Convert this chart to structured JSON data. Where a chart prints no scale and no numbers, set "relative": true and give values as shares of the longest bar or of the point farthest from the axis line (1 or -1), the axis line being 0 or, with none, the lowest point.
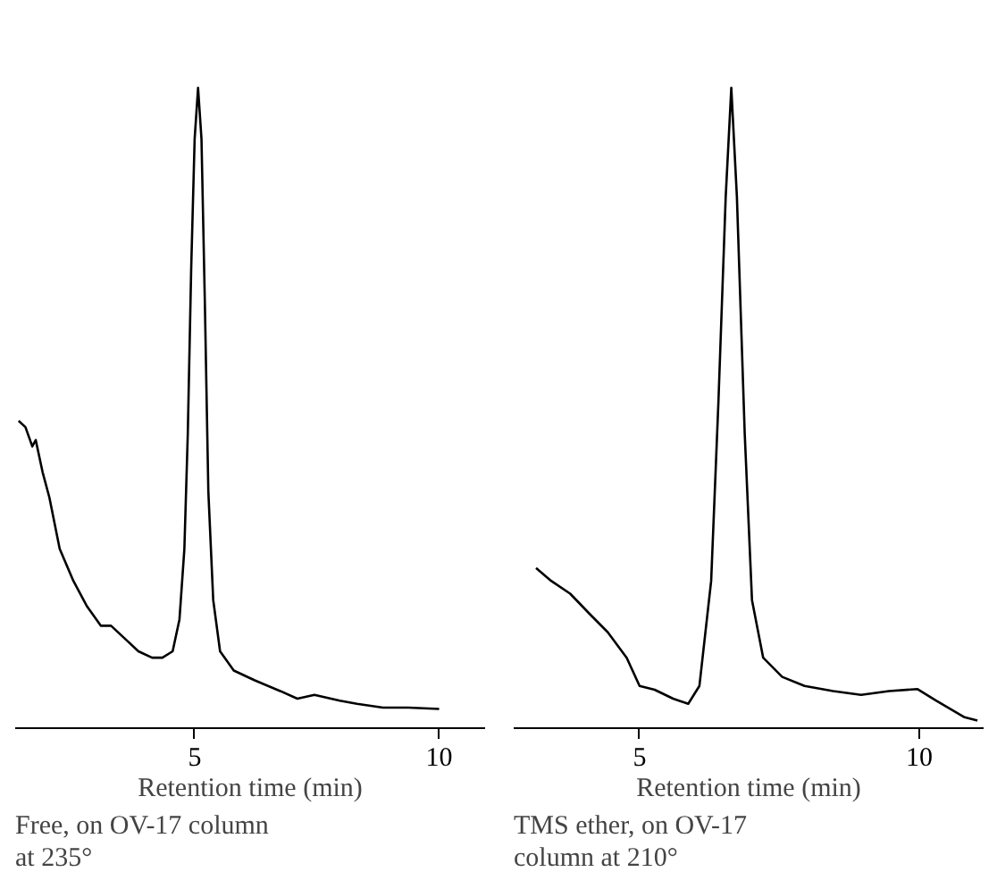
{
  "chart_data": [
    {
      "type": "line",
      "relative": true,
      "xlabel": "Retention time (min)",
      "xlim": [
        1.33,
        10.94
      ],
      "xticks": [
        5,
        10
      ],
      "grid": false,
      "annotations": [
        "Free, on OV-17 column\nat 235°"
      ],
      "series": [
        {
          "color": "#000000",
          "x": [
            1.4,
            1.54,
            1.68,
            1.75,
            1.89,
            2.03,
            2.24,
            2.52,
            2.8,
            3.08,
            3.29,
            3.57,
            3.85,
            4.13,
            4.34,
            4.55,
            4.69,
            4.79,
            4.86,
            4.93,
            5.0,
            5.07,
            5.14,
            5.21,
            5.28,
            5.38,
            5.52,
            5.8,
            6.22,
            6.75,
            7.1,
            7.45,
            7.97,
            8.32,
            8.85,
            9.37,
            10.0
          ],
          "values": [
            0.48,
            0.47,
            0.44,
            0.45,
            0.4,
            0.36,
            0.28,
            0.23,
            0.19,
            0.16,
            0.16,
            0.14,
            0.12,
            0.11,
            0.11,
            0.12,
            0.17,
            0.28,
            0.46,
            0.72,
            0.92,
            1.0,
            0.92,
            0.66,
            0.37,
            0.2,
            0.12,
            0.09,
            0.075,
            0.058,
            0.046,
            0.052,
            0.043,
            0.038,
            0.032,
            0.032,
            0.03
          ]
        }
      ]
    },
    {
      "type": "line",
      "relative": true,
      "xlabel": "Retention time (min)",
      "xlim": [
        2.75,
        11.15
      ],
      "xticks": [
        5,
        10
      ],
      "grid": false,
      "annotations": [
        "TMS ether, on OV-17\ncolumn at 210°"
      ],
      "series": [
        {
          "color": "#000000",
          "x": [
            3.15,
            3.42,
            3.76,
            4.09,
            4.43,
            4.77,
            5.0,
            5.27,
            5.6,
            5.87,
            6.07,
            6.28,
            6.41,
            6.54,
            6.64,
            6.74,
            6.88,
            7.01,
            7.21,
            7.55,
            7.95,
            8.46,
            8.96,
            9.46,
            9.97,
            10.3,
            10.81,
            11.04
          ],
          "values": [
            0.25,
            0.23,
            0.21,
            0.18,
            0.15,
            0.11,
            0.066,
            0.06,
            0.046,
            0.038,
            0.066,
            0.23,
            0.51,
            0.83,
            1.0,
            0.83,
            0.46,
            0.2,
            0.11,
            0.08,
            0.066,
            0.058,
            0.052,
            0.058,
            0.061,
            0.043,
            0.017,
            0.012
          ]
        }
      ]
    }
  ]
}
